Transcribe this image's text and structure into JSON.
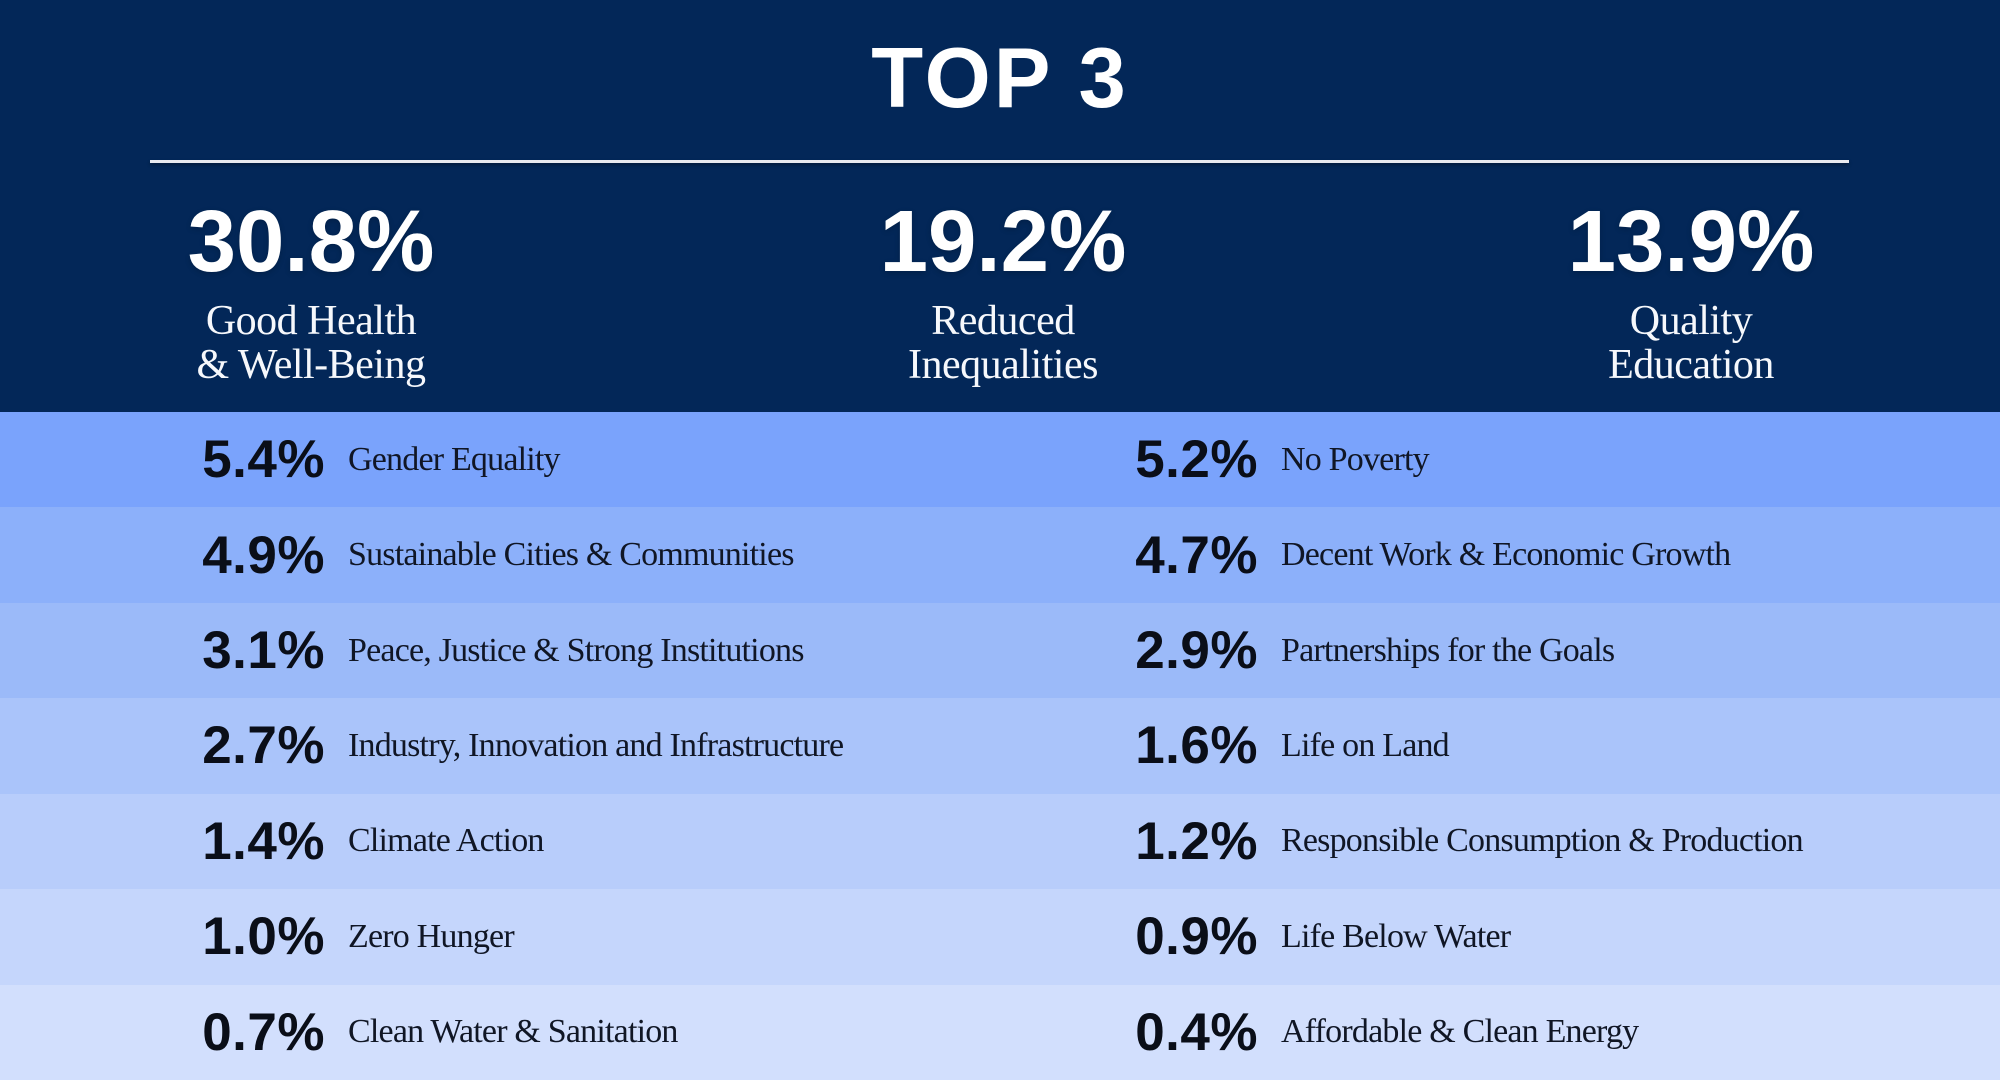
{
  "header": {
    "title": "TOP 3"
  },
  "top3": [
    {
      "value": "30.8%",
      "label_lines": [
        "Good Health",
        "& Well-Being"
      ]
    },
    {
      "value": "19.2%",
      "label_lines": [
        "Reduced",
        "Inequalities"
      ]
    },
    {
      "value": "13.9%",
      "label_lines": [
        "Quality",
        "Education"
      ]
    }
  ],
  "table": {
    "rows": [
      {
        "left": {
          "pct": "5.4%",
          "label": "Gender Equality"
        },
        "right": {
          "pct": "5.2%",
          "label": "No Poverty"
        }
      },
      {
        "left": {
          "pct": "4.9%",
          "label": "Sustainable Cities & Communities"
        },
        "right": {
          "pct": "4.7%",
          "label": "Decent Work & Economic Growth"
        }
      },
      {
        "left": {
          "pct": "3.1%",
          "label": "Peace, Justice & Strong Institutions"
        },
        "right": {
          "pct": "2.9%",
          "label": "Partnerships for the Goals"
        }
      },
      {
        "left": {
          "pct": "2.7%",
          "label": "Industry, Innovation and Infrastructure"
        },
        "right": {
          "pct": "1.6%",
          "label": "Life on Land"
        }
      },
      {
        "left": {
          "pct": "1.4%",
          "label": "Climate Action"
        },
        "right": {
          "pct": "1.2%",
          "label": "Responsible Consumption & Production"
        }
      },
      {
        "left": {
          "pct": "1.0%",
          "label": "Zero Hunger"
        },
        "right": {
          "pct": "0.9%",
          "label": "Life Below Water"
        }
      },
      {
        "left": {
          "pct": "0.7%",
          "label": "Clean Water & Sanitation"
        },
        "right": {
          "pct": "0.4%",
          "label": "Affordable & Clean Energy"
        }
      }
    ],
    "row_colors": [
      "#7AA3FC",
      "#8CB0FA",
      "#9BBAF9",
      "#AAC4FA",
      "#B8CDFB",
      "#C5D6FC",
      "#D2DFFD"
    ]
  },
  "colors": {
    "navy": "#032758",
    "title_text": "#FFFFFF",
    "divider": "#E9EAF0",
    "row_text": "#0A0E18"
  },
  "chart_data": {
    "type": "table",
    "title": "TOP 3",
    "categories": [
      "Good Health & Well-Being",
      "Reduced Inequalities",
      "Quality Education",
      "Gender Equality",
      "No Poverty",
      "Sustainable Cities & Communities",
      "Decent Work & Economic Growth",
      "Peace, Justice & Strong Institutions",
      "Partnerships for the Goals",
      "Industry, Innovation and Infrastructure",
      "Life on Land",
      "Climate Action",
      "Responsible Consumption & Production",
      "Zero Hunger",
      "Life Below Water",
      "Clean Water & Sanitation",
      "Affordable & Clean Energy"
    ],
    "values": [
      30.8,
      19.2,
      13.9,
      5.4,
      5.2,
      4.9,
      4.7,
      3.1,
      2.9,
      2.7,
      1.6,
      1.4,
      1.2,
      1.0,
      0.9,
      0.7,
      0.4
    ],
    "unit": "%"
  }
}
